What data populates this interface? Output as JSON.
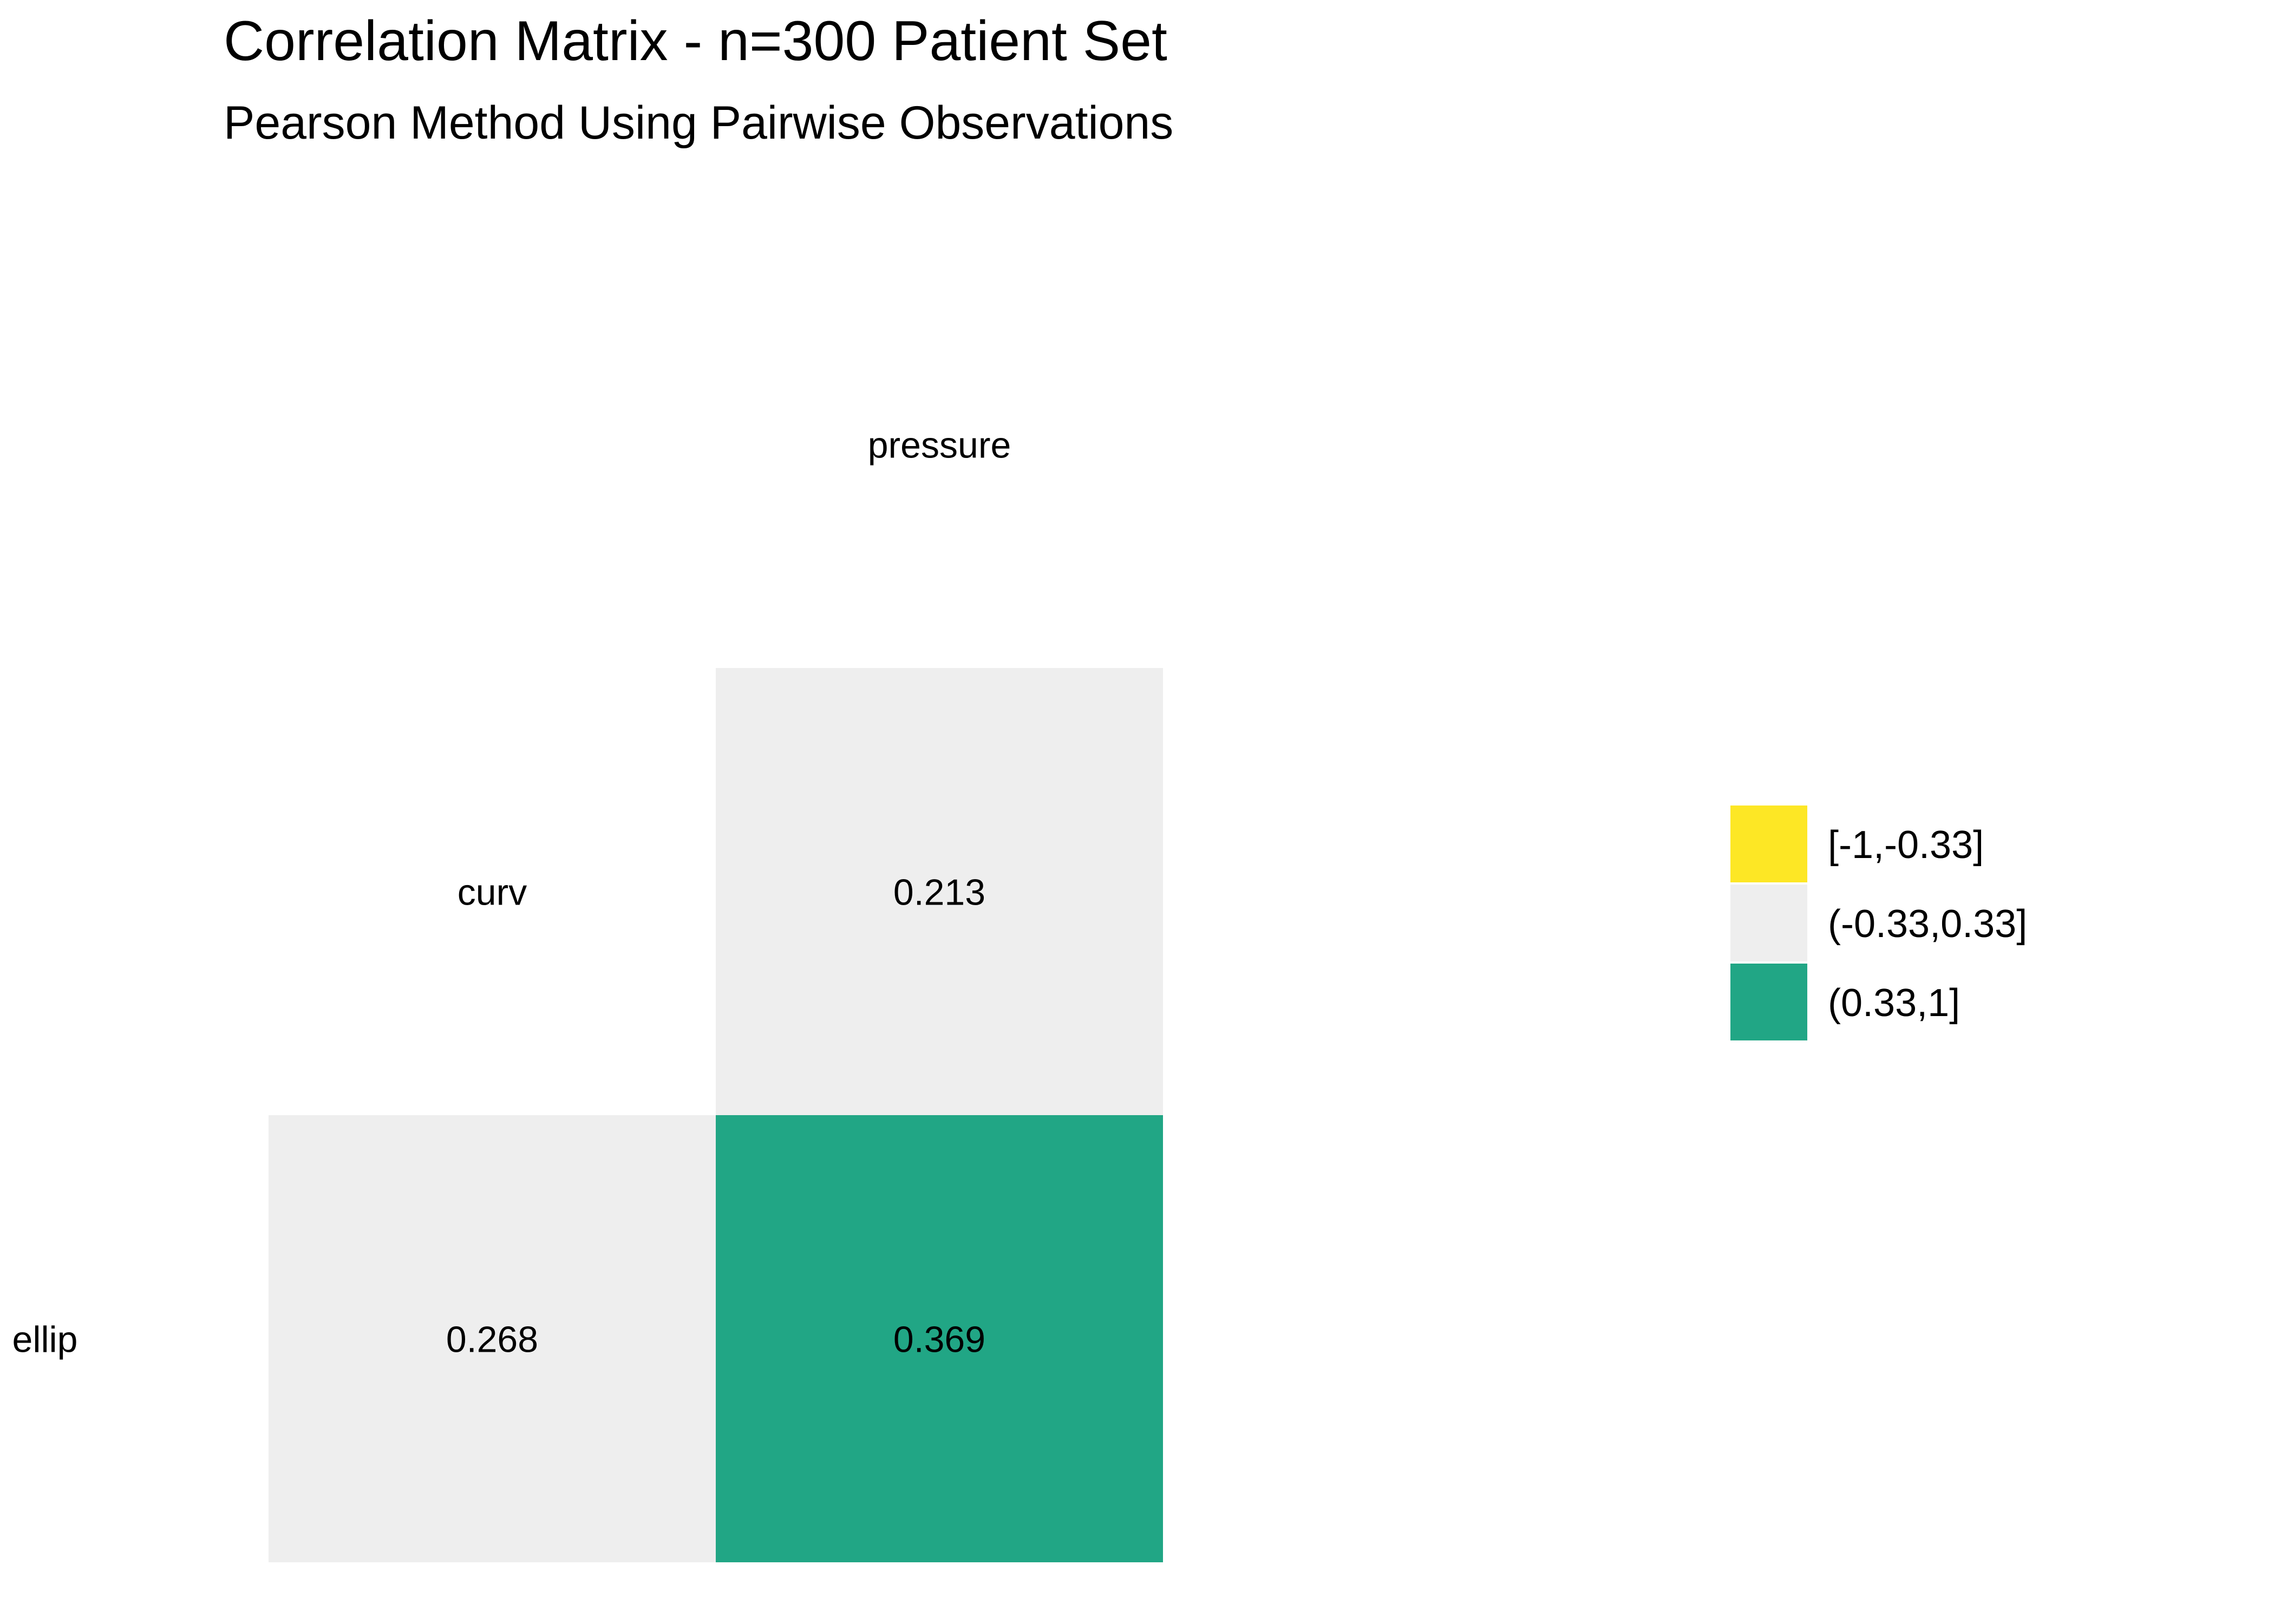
{
  "chart_data": {
    "type": "heatmap",
    "title": "Correlation Matrix - n=300 Patient Set",
    "subtitle": "Pearson Method Using Pairwise Observations",
    "variables": [
      "ellip",
      "curv",
      "pressure"
    ],
    "cells": [
      {
        "row": "curv",
        "col": "pressure",
        "value": 0.213,
        "label": "0.213",
        "bin": "(-0.33,0.33]"
      },
      {
        "row": "ellip",
        "col": "curv",
        "value": 0.268,
        "label": "0.268",
        "bin": "(-0.33,0.33]"
      },
      {
        "row": "ellip",
        "col": "pressure",
        "value": 0.369,
        "label": "0.369",
        "bin": "(0.33,1]"
      }
    ],
    "legend": {
      "placement": "right",
      "items": [
        {
          "label": "[-1,-0.33]",
          "color": "#FDE725"
        },
        {
          "label": "(-0.33,0.33]",
          "color": "#EEEEEE"
        },
        {
          "label": "(0.33,1]",
          "color": "#21A685"
        }
      ]
    }
  }
}
